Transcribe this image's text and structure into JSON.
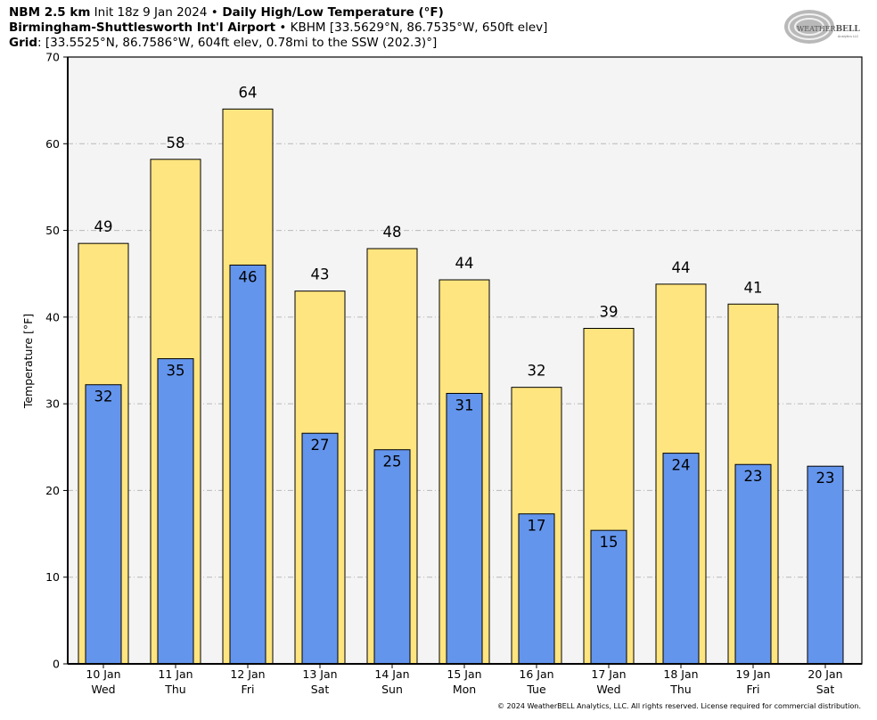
{
  "header": {
    "line1_bold1": "NBM 2.5 km",
    "line1_text1": " Init 18z 9 Jan 2024 ",
    "line1_bullet": "•",
    "line1_bold2": " Daily High/Low Temperature (°F)",
    "line2_bold": "Birmingham-Shuttlesworth Int'l Airport",
    "line2_bullet": " • ",
    "line2_text": "KBHM [33.5629°N, 86.7535°W, 650ft elev]",
    "line3_bold": "Grid",
    "line3_text": ": [33.5525°N, 86.7586°W, 604ft elev, 0.78mi to the SSW (202.3)°]"
  },
  "logo": {
    "text_top": "WEATHER",
    "text_bold": "BELL",
    "text_small": "Analytics LLC"
  },
  "footer": "© 2024 WeatherBELL Analytics, LLC. All rights reserved. License required for commercial distribution.",
  "colors": {
    "high": "#ffe57f",
    "low": "#6495ed",
    "plot_bg": "#f4f4f4",
    "grid": "#b8b8b8"
  },
  "chart_data": {
    "type": "bar",
    "ylabel": "Temperature [°F]",
    "xlabel": "",
    "ylim": [
      0,
      70
    ],
    "yticks": [
      0,
      10,
      20,
      30,
      40,
      50,
      60,
      70
    ],
    "grid": true,
    "categories": [
      [
        "10 Jan",
        "Wed"
      ],
      [
        "11 Jan",
        "Thu"
      ],
      [
        "12 Jan",
        "Fri"
      ],
      [
        "13 Jan",
        "Sat"
      ],
      [
        "14 Jan",
        "Sun"
      ],
      [
        "15 Jan",
        "Mon"
      ],
      [
        "16 Jan",
        "Tue"
      ],
      [
        "17 Jan",
        "Wed"
      ],
      [
        "18 Jan",
        "Thu"
      ],
      [
        "19 Jan",
        "Fri"
      ],
      [
        "20 Jan",
        "Sat"
      ]
    ],
    "series": [
      {
        "key": "high",
        "values": [
          48.5,
          58.2,
          64.0,
          43.0,
          47.9,
          44.3,
          31.9,
          38.7,
          43.8,
          41.5,
          null
        ],
        "labels": [
          "49",
          "58",
          "64",
          "43",
          "48",
          "44",
          "32",
          "39",
          "44",
          "41",
          ""
        ]
      },
      {
        "key": "low",
        "values": [
          32.2,
          35.2,
          46.0,
          26.6,
          24.7,
          31.2,
          17.3,
          15.4,
          24.3,
          23.0,
          22.8
        ],
        "labels": [
          "32",
          "35",
          "46",
          "27",
          "25",
          "31",
          "17",
          "15",
          "24",
          "23",
          "23"
        ]
      }
    ]
  }
}
